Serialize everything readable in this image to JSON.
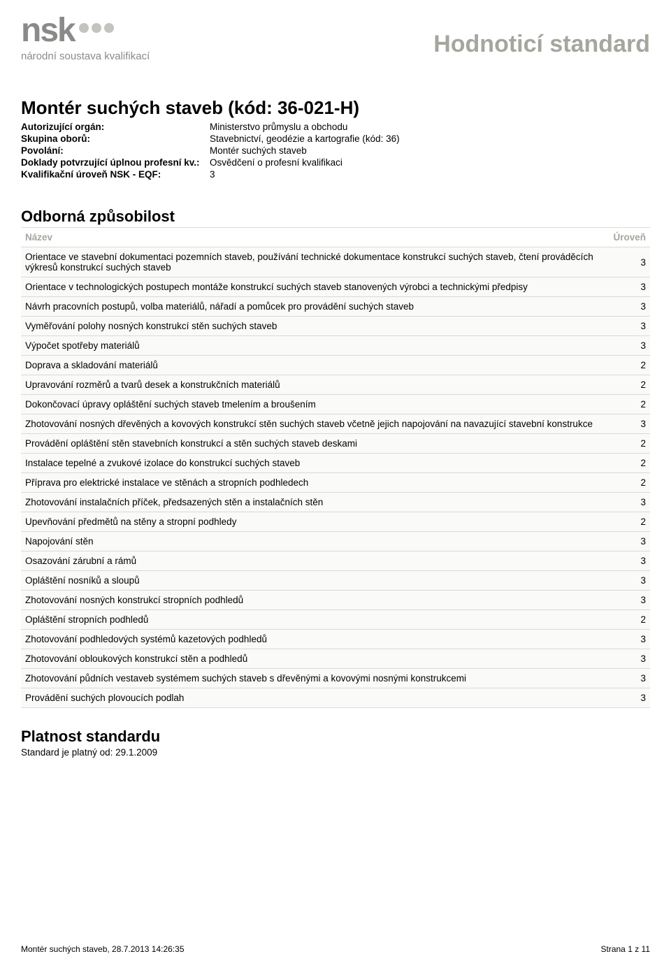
{
  "logo": {
    "main": "nsk",
    "sub": "národní soustava kvalifikací"
  },
  "page_title": "Hodnoticí standard",
  "doc_title": "Montér suchých staveb (kód: 36-021-H)",
  "meta": [
    {
      "label": "Autorizující orgán:",
      "value": "Ministerstvo průmyslu a obchodu"
    },
    {
      "label": "Skupina oborů:",
      "value": "Stavebnictví, geodézie a kartografie (kód: 36)"
    },
    {
      "label": "Povolání:",
      "value": "Montér suchých staveb"
    },
    {
      "label": "Doklady potvrzující úplnou profesní kv.:",
      "value": "Osvědčení o profesní kvalifikaci"
    },
    {
      "label": "Kvalifikační úroveň NSK - EQF:",
      "value": "3"
    }
  ],
  "competence": {
    "title": "Odborná způsobilost",
    "header_name": "Název",
    "header_level": "Úroveň",
    "rows": [
      {
        "name": "Orientace ve stavební dokumentaci pozemních staveb, používání technické dokumentace konstrukcí suchých staveb, čtení prováděcích výkresů konstrukcí suchých staveb",
        "level": "3"
      },
      {
        "name": "Orientace v technologických postupech montáže konstrukcí suchých staveb stanovených výrobci a technickými předpisy",
        "level": "3"
      },
      {
        "name": "Návrh pracovních postupů, volba materiálů, nářadí a pomůcek pro provádění suchých staveb",
        "level": "3"
      },
      {
        "name": "Vyměřování polohy nosných konstrukcí stěn suchých staveb",
        "level": "3"
      },
      {
        "name": "Výpočet spotřeby materiálů",
        "level": "3"
      },
      {
        "name": "Doprava a skladování materiálů",
        "level": "2"
      },
      {
        "name": "Upravování rozměrů a tvarů desek a konstrukčních materiálů",
        "level": "2"
      },
      {
        "name": "Dokončovací úpravy opláštění suchých staveb tmelením a broušením",
        "level": "2"
      },
      {
        "name": "Zhotovování nosných dřevěných a kovových konstrukcí stěn suchých staveb včetně jejich napojování na navazující stavební konstrukce",
        "level": "3"
      },
      {
        "name": "Provádění opláštění stěn stavebních konstrukcí a stěn suchých staveb deskami",
        "level": "2"
      },
      {
        "name": "Instalace tepelné a zvukové izolace do konstrukcí suchých staveb",
        "level": "2"
      },
      {
        "name": "Příprava pro elektrické instalace ve stěnách a stropních podhledech",
        "level": "2"
      },
      {
        "name": "Zhotovování instalačních příček, předsazených stěn a instalačních stěn",
        "level": "3"
      },
      {
        "name": "Upevňování předmětů na stěny a stropní podhledy",
        "level": "2"
      },
      {
        "name": "Napojování stěn",
        "level": "3"
      },
      {
        "name": "Osazování zárubní a rámů",
        "level": "3"
      },
      {
        "name": "Opláštění nosníků a sloupů",
        "level": "3"
      },
      {
        "name": "Zhotovování nosných konstrukcí stropních podhledů",
        "level": "3"
      },
      {
        "name": "Opláštění stropních podhledů",
        "level": "2"
      },
      {
        "name": "Zhotovování podhledových systémů kazetových podhledů",
        "level": "3"
      },
      {
        "name": "Zhotovování obloukových konstrukcí stěn a podhledů",
        "level": "3"
      },
      {
        "name": "Zhotovování půdních vestaveb systémem suchých staveb s dřevěnými a kovovými nosnými konstrukcemi",
        "level": "3"
      },
      {
        "name": "Provádění suchých plovoucích podlah",
        "level": "3"
      }
    ]
  },
  "validity": {
    "title": "Platnost standardu",
    "text": "Standard je platný od: 29.1.2009"
  },
  "footer": {
    "left": "Montér suchých staveb, 28.7.2013 14:26:35",
    "right": "Strana 1 z 11"
  }
}
